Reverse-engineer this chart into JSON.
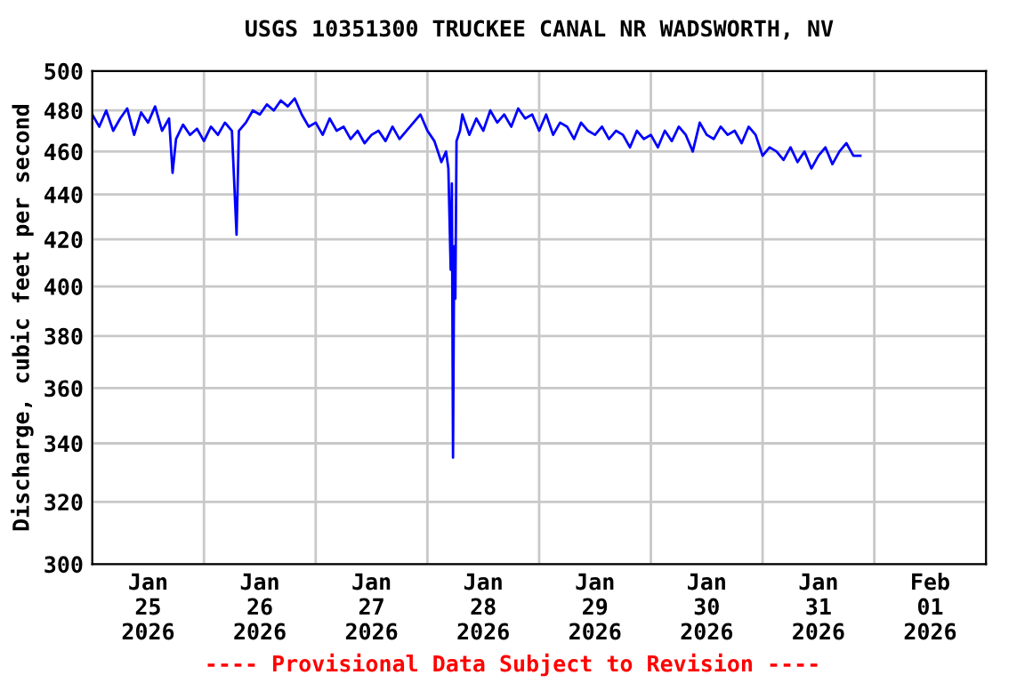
{
  "chart_data": {
    "type": "line",
    "title": "USGS 10351300 TRUCKEE CANAL NR WADSWORTH, NV",
    "ylabel": "Discharge, cubic feet per second",
    "annotations": [
      "---- Provisional Data Subject to Revision ----"
    ],
    "log": "y",
    "grid": true,
    "marker": "none",
    "line_style": "solid",
    "xlim": [
      "2026-01-25T00:00",
      "2026-02-02T00:00"
    ],
    "xticks": [
      {
        "value": "2026-01-25T00:00",
        "label": null
      },
      {
        "value": "2026-01-25T12:00",
        "label": "Jan\n25\n2026"
      },
      {
        "value": "2026-01-26T00:00",
        "label": null
      },
      {
        "value": "2026-01-26T12:00",
        "label": "Jan\n26\n2026"
      },
      {
        "value": "2026-01-27T00:00",
        "label": null
      },
      {
        "value": "2026-01-27T12:00",
        "label": "Jan\n27\n2026"
      },
      {
        "value": "2026-01-28T00:00",
        "label": null
      },
      {
        "value": "2026-01-28T12:00",
        "label": "Jan\n28\n2026"
      },
      {
        "value": "2026-01-29T00:00",
        "label": null
      },
      {
        "value": "2026-01-29T12:00",
        "label": "Jan\n29\n2026"
      },
      {
        "value": "2026-01-30T00:00",
        "label": null
      },
      {
        "value": "2026-01-30T12:00",
        "label": "Jan\n30\n2026"
      },
      {
        "value": "2026-01-31T00:00",
        "label": null
      },
      {
        "value": "2026-01-31T12:00",
        "label": "Jan\n31\n2026"
      },
      {
        "value": "2026-02-01T00:00",
        "label": null
      },
      {
        "value": "2026-02-01T12:00",
        "label": "Feb\n01\n2026"
      },
      {
        "value": "2026-02-02T00:00",
        "label": null
      }
    ],
    "ylim": [
      300,
      500
    ],
    "yticks": [
      300,
      320,
      340,
      360,
      380,
      400,
      420,
      440,
      460,
      480,
      500
    ],
    "series": [
      {
        "color": "#0000ff",
        "x": [
          "2026-01-25T00:00",
          "2026-01-25T01:30",
          "2026-01-25T03:00",
          "2026-01-25T04:30",
          "2026-01-25T06:00",
          "2026-01-25T07:30",
          "2026-01-25T09:00",
          "2026-01-25T10:30",
          "2026-01-25T12:00",
          "2026-01-25T13:30",
          "2026-01-25T15:00",
          "2026-01-25T16:30",
          "2026-01-25T17:15",
          "2026-01-25T18:00",
          "2026-01-25T19:30",
          "2026-01-25T21:00",
          "2026-01-25T22:30",
          "2026-01-26T00:00",
          "2026-01-26T01:30",
          "2026-01-26T03:00",
          "2026-01-26T04:30",
          "2026-01-26T06:00",
          "2026-01-26T07:00",
          "2026-01-26T07:30",
          "2026-01-26T09:00",
          "2026-01-26T10:30",
          "2026-01-26T12:00",
          "2026-01-26T13:30",
          "2026-01-26T15:00",
          "2026-01-26T16:30",
          "2026-01-26T18:00",
          "2026-01-26T19:30",
          "2026-01-26T21:00",
          "2026-01-26T22:30",
          "2026-01-27T00:00",
          "2026-01-27T01:30",
          "2026-01-27T03:00",
          "2026-01-27T04:30",
          "2026-01-27T06:00",
          "2026-01-27T07:30",
          "2026-01-27T09:00",
          "2026-01-27T10:30",
          "2026-01-27T12:00",
          "2026-01-27T13:30",
          "2026-01-27T15:00",
          "2026-01-27T16:30",
          "2026-01-27T18:00",
          "2026-01-27T19:30",
          "2026-01-27T21:00",
          "2026-01-27T22:30",
          "2026-01-28T00:00",
          "2026-01-28T01:30",
          "2026-01-28T03:00",
          "2026-01-28T04:00",
          "2026-01-28T04:30",
          "2026-01-28T05:00",
          "2026-01-28T05:15",
          "2026-01-28T05:30",
          "2026-01-28T05:45",
          "2026-01-28T06:00",
          "2026-01-28T06:15",
          "2026-01-28T07:00",
          "2026-01-28T07:30",
          "2026-01-28T09:00",
          "2026-01-28T10:30",
          "2026-01-28T12:00",
          "2026-01-28T13:30",
          "2026-01-28T15:00",
          "2026-01-28T16:30",
          "2026-01-28T18:00",
          "2026-01-28T19:30",
          "2026-01-28T21:00",
          "2026-01-28T22:30",
          "2026-01-29T00:00",
          "2026-01-29T01:30",
          "2026-01-29T03:00",
          "2026-01-29T04:30",
          "2026-01-29T06:00",
          "2026-01-29T07:30",
          "2026-01-29T09:00",
          "2026-01-29T10:30",
          "2026-01-29T12:00",
          "2026-01-29T13:30",
          "2026-01-29T15:00",
          "2026-01-29T16:30",
          "2026-01-29T18:00",
          "2026-01-29T19:30",
          "2026-01-29T21:00",
          "2026-01-29T22:30",
          "2026-01-30T00:00",
          "2026-01-30T01:30",
          "2026-01-30T03:00",
          "2026-01-30T04:30",
          "2026-01-30T06:00",
          "2026-01-30T07:30",
          "2026-01-30T09:00",
          "2026-01-30T10:30",
          "2026-01-30T12:00",
          "2026-01-30T13:30",
          "2026-01-30T15:00",
          "2026-01-30T16:30",
          "2026-01-30T18:00",
          "2026-01-30T19:30",
          "2026-01-30T21:00",
          "2026-01-30T22:30",
          "2026-01-31T00:00",
          "2026-01-31T01:30",
          "2026-01-31T03:00",
          "2026-01-31T04:30",
          "2026-01-31T06:00",
          "2026-01-31T07:30",
          "2026-01-31T09:00",
          "2026-01-31T10:30",
          "2026-01-31T12:00",
          "2026-01-31T13:30",
          "2026-01-31T15:00",
          "2026-01-31T16:30",
          "2026-01-31T18:00",
          "2026-01-31T19:30",
          "2026-01-31T21:00"
        ],
        "values": [
          478,
          472,
          480,
          470,
          476,
          481,
          468,
          479,
          474,
          482,
          470,
          476,
          450,
          466,
          473,
          468,
          471,
          465,
          472,
          468,
          474,
          470,
          422,
          470,
          474,
          480,
          478,
          483,
          480,
          485,
          482,
          486,
          478,
          472,
          474,
          468,
          476,
          470,
          472,
          466,
          470,
          464,
          468,
          470,
          465,
          472,
          466,
          470,
          474,
          478,
          470,
          465,
          455,
          460,
          452,
          407,
          445,
          335,
          417,
          395,
          465,
          470,
          478,
          468,
          476,
          470,
          480,
          474,
          478,
          472,
          481,
          476,
          478,
          470,
          478,
          468,
          474,
          472,
          466,
          474,
          470,
          468,
          472,
          466,
          470,
          468,
          462,
          470,
          466,
          468,
          462,
          470,
          465,
          472,
          468,
          460,
          474,
          468,
          466,
          472,
          468,
          470,
          464,
          472,
          468,
          458,
          462,
          460,
          456,
          462,
          455,
          460,
          452,
          458,
          462,
          454,
          460,
          464,
          458,
          458
        ]
      }
    ]
  }
}
